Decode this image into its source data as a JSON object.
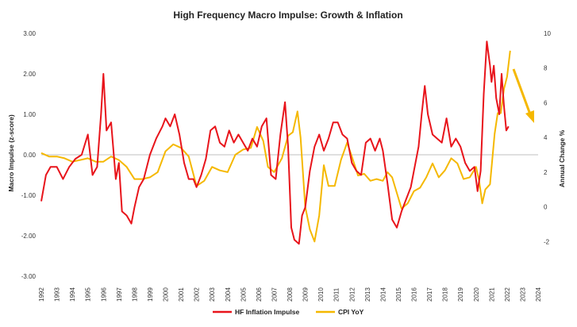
{
  "chart_data": {
    "type": "line",
    "title": "High Frequency Macro Impulse: Growth & Inflation",
    "ylabel_left": "Macro Impulse (z-score)",
    "ylabel_right": "Annual Change %",
    "ylim_left": [
      -3,
      3
    ],
    "ylim_right": [
      -4,
      10
    ],
    "yticks_left": [
      "3.00",
      "2.00",
      "1.00",
      "0.00",
      "-1.00",
      "-2.00",
      "-3.00"
    ],
    "yticks_right": [
      "10",
      "8",
      "6",
      "4",
      "2",
      "0",
      "-2"
    ],
    "x_ticks": [
      "1992",
      "1993",
      "1994",
      "1995",
      "1996",
      "1997",
      "1998",
      "1999",
      "2000",
      "2001",
      "2002",
      "2003",
      "2004",
      "2005",
      "2006",
      "2007",
      "2008",
      "2009",
      "2010",
      "2011",
      "2012",
      "2013",
      "2014",
      "2015",
      "2016",
      "2017",
      "2018",
      "2019",
      "2020",
      "2021",
      "2022",
      "2023",
      "2024"
    ],
    "xlim": [
      1992,
      2024
    ],
    "series": [
      {
        "name": "HF Inflation Impulse",
        "axis": "left",
        "color": "#e8141b",
        "x": [
          1992.0,
          1992.3,
          1992.6,
          1993.0,
          1993.4,
          1993.8,
          1994.2,
          1994.6,
          1995.0,
          1995.3,
          1995.6,
          1995.85,
          1996.0,
          1996.2,
          1996.5,
          1996.8,
          1997.0,
          1997.2,
          1997.5,
          1997.8,
          1998.0,
          1998.3,
          1998.6,
          1999.0,
          1999.4,
          1999.8,
          2000.0,
          2000.3,
          2000.6,
          2000.9,
          2001.2,
          2001.5,
          2001.8,
          2002.0,
          2002.3,
          2002.6,
          2002.9,
          2003.2,
          2003.5,
          2003.8,
          2004.1,
          2004.4,
          2004.7,
          2005.0,
          2005.3,
          2005.6,
          2005.9,
          2006.2,
          2006.5,
          2006.8,
          2007.1,
          2007.4,
          2007.7,
          2007.9,
          2008.1,
          2008.3,
          2008.6,
          2008.8,
          2009.0,
          2009.3,
          2009.6,
          2009.9,
          2010.2,
          2010.5,
          2010.8,
          2011.1,
          2011.4,
          2011.7,
          2012.0,
          2012.3,
          2012.6,
          2012.9,
          2013.2,
          2013.5,
          2013.8,
          2014.0,
          2014.3,
          2014.6,
          2014.9,
          2015.2,
          2015.5,
          2015.8,
          2016.0,
          2016.3,
          2016.5,
          2016.7,
          2016.9,
          2017.2,
          2017.5,
          2017.8,
          2018.1,
          2018.4,
          2018.7,
          2019.0,
          2019.3,
          2019.6,
          2019.9,
          2020.1,
          2020.3,
          2020.5,
          2020.7,
          2020.9,
          2021.0,
          2021.15,
          2021.3,
          2021.5,
          2021.65,
          2021.8,
          2021.95,
          2022.1
        ],
        "values": [
          -1.15,
          -0.5,
          -0.3,
          -0.3,
          -0.6,
          -0.3,
          -0.1,
          0.0,
          0.5,
          -0.5,
          -0.3,
          1.0,
          2.0,
          0.6,
          0.8,
          -0.6,
          -0.2,
          -1.4,
          -1.5,
          -1.7,
          -1.3,
          -0.8,
          -0.6,
          0.0,
          0.4,
          0.7,
          0.9,
          0.7,
          1.0,
          0.5,
          -0.2,
          -0.6,
          -0.6,
          -0.8,
          -0.5,
          -0.1,
          0.6,
          0.7,
          0.3,
          0.2,
          0.6,
          0.3,
          0.5,
          0.3,
          0.1,
          0.4,
          0.2,
          0.7,
          0.9,
          -0.5,
          -0.6,
          0.5,
          1.3,
          0.2,
          -1.8,
          -2.1,
          -2.2,
          -1.5,
          -1.3,
          -0.4,
          0.2,
          0.5,
          0.1,
          0.4,
          0.8,
          0.8,
          0.5,
          0.4,
          -0.2,
          -0.4,
          -0.5,
          0.3,
          0.4,
          0.1,
          0.4,
          0.1,
          -0.7,
          -1.6,
          -1.8,
          -1.4,
          -1.1,
          -0.8,
          -0.4,
          0.2,
          1.0,
          1.7,
          1.0,
          0.5,
          0.4,
          0.3,
          0.9,
          0.2,
          0.4,
          0.2,
          -0.2,
          -0.4,
          -0.3,
          -0.9,
          -0.4,
          1.5,
          2.8,
          2.2,
          1.8,
          2.2,
          1.4,
          1.0,
          2.0,
          1.2,
          0.6,
          0.7
        ]
      },
      {
        "name": "CPI YoY",
        "axis": "right",
        "color": "#f5b800",
        "x": [
          1992.0,
          1992.5,
          1993.0,
          1993.5,
          1994.0,
          1994.5,
          1995.0,
          1995.5,
          1996.0,
          1996.5,
          1997.0,
          1997.5,
          1998.0,
          1998.5,
          1999.0,
          1999.5,
          2000.0,
          2000.5,
          2001.0,
          2001.5,
          2002.0,
          2002.5,
          2003.0,
          2003.5,
          2004.0,
          2004.5,
          2005.0,
          2005.5,
          2005.9,
          2006.3,
          2006.6,
          2007.0,
          2007.5,
          2007.9,
          2008.2,
          2008.5,
          2008.7,
          2009.0,
          2009.3,
          2009.6,
          2009.9,
          2010.2,
          2010.5,
          2010.9,
          2011.3,
          2011.7,
          2012.0,
          2012.4,
          2012.8,
          2013.2,
          2013.6,
          2014.0,
          2014.3,
          2014.6,
          2014.9,
          2015.2,
          2015.6,
          2016.0,
          2016.4,
          2016.8,
          2017.2,
          2017.6,
          2018.0,
          2018.4,
          2018.8,
          2019.2,
          2019.6,
          2020.0,
          2020.2,
          2020.4,
          2020.6,
          2020.9,
          2021.2,
          2021.4,
          2021.6,
          2021.8,
          2022.0,
          2022.2
        ],
        "values": [
          3.1,
          2.9,
          2.9,
          2.8,
          2.6,
          2.7,
          2.8,
          2.6,
          2.6,
          2.9,
          2.7,
          2.3,
          1.6,
          1.6,
          1.7,
          2.0,
          3.2,
          3.6,
          3.4,
          2.9,
          1.2,
          1.5,
          2.3,
          2.1,
          2.0,
          3.0,
          3.3,
          3.4,
          4.6,
          3.8,
          2.3,
          2.0,
          2.8,
          4.1,
          4.3,
          5.5,
          4.0,
          0.0,
          -1.3,
          -2.0,
          -0.5,
          2.4,
          1.2,
          1.2,
          2.7,
          3.7,
          2.9,
          1.8,
          1.9,
          1.5,
          1.6,
          1.5,
          2.0,
          1.7,
          0.8,
          -0.1,
          0.2,
          0.9,
          1.1,
          1.7,
          2.5,
          1.7,
          2.1,
          2.8,
          2.5,
          1.6,
          1.7,
          2.3,
          1.5,
          0.2,
          1.0,
          1.3,
          4.2,
          5.4,
          5.4,
          6.8,
          7.5,
          9.0
        ]
      }
    ],
    "annotation": "arrow-down-right"
  },
  "legend": {
    "items": [
      {
        "label": "HF Inflation Impulse",
        "color": "#e8141b"
      },
      {
        "label": "CPI YoY",
        "color": "#f5b800"
      }
    ]
  }
}
